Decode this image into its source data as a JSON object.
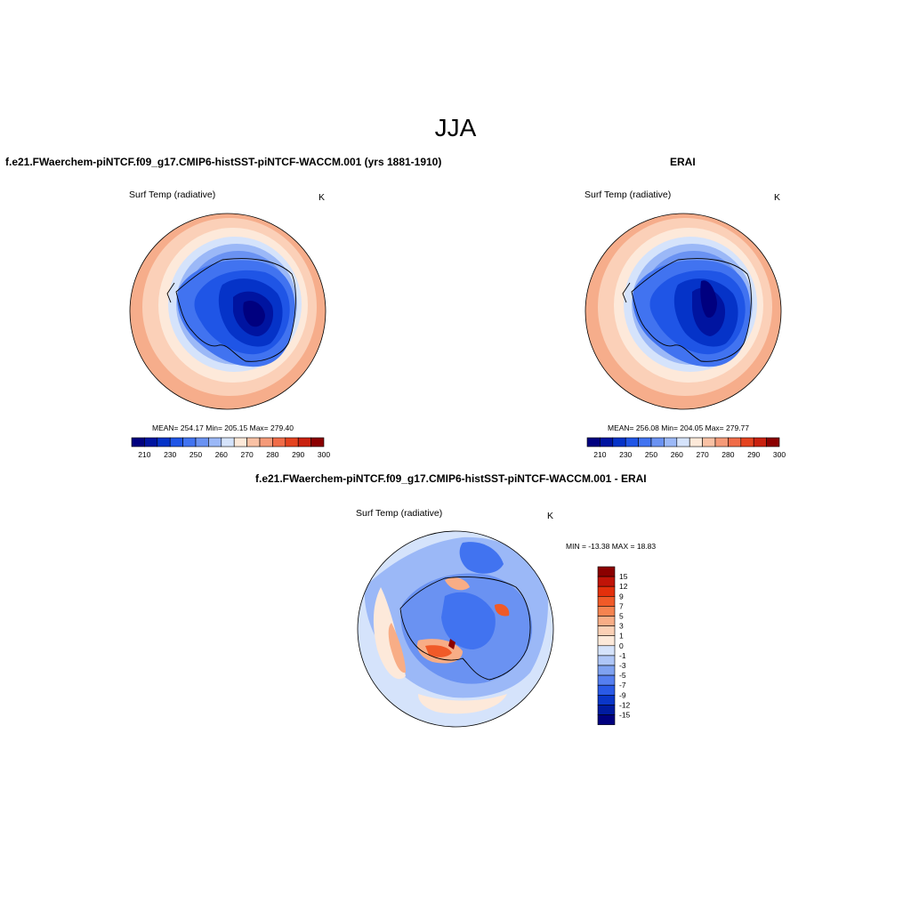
{
  "figure": {
    "title": "JJA",
    "left_panel": {
      "title": "f.e21.FWaerchem-piNTCF.f09_g17.CMIP6-histSST-piNTCF-WACCM.001 (yrs 1881-1910)",
      "variable": "Surf Temp (radiative)",
      "units": "K",
      "stats": "MEAN= 254.17  Min= 205.15  Max= 279.40"
    },
    "right_panel": {
      "title": "ERAI",
      "variable": "Surf Temp (radiative)",
      "units": "K",
      "stats": "MEAN= 256.08  Min= 204.05  Max= 279.77"
    },
    "diff_panel": {
      "title": "f.e21.FWaerchem-piNTCF.f09_g17.CMIP6-histSST-piNTCF-WACCM.001 - ERAI",
      "variable": "Surf Temp (radiative)",
      "units": "K",
      "stats": "MIN = -13.38 MAX =  18.83"
    }
  },
  "colorbars": {
    "abs_colors": [
      "#00007f",
      "#0014a0",
      "#0533c8",
      "#1f55e6",
      "#4173f0",
      "#6a92f2",
      "#9bb8f7",
      "#d5e3fb",
      "#fde9d9",
      "#f9c1a4",
      "#f59a78",
      "#f06c48",
      "#e4431f",
      "#c9210f",
      "#8b0000"
    ],
    "abs_labels": [
      "210",
      "230",
      "250",
      "260",
      "270",
      "280",
      "290",
      "300"
    ],
    "diff_colors": [
      "#8b0000",
      "#c01408",
      "#e3300c",
      "#f05a28",
      "#f58350",
      "#f8ad86",
      "#fbd0b5",
      "#fde9d9",
      "#d5e3fb",
      "#aec6f7",
      "#7fa2f1",
      "#557ff0",
      "#2a5ae6",
      "#0a36c8",
      "#001ba0",
      "#00007f"
    ],
    "diff_labels": [
      "15",
      "12",
      "9",
      "7",
      "5",
      "3",
      "1",
      "0",
      "-1",
      "-3",
      "-5",
      "-7",
      "-9",
      "-12",
      "-15"
    ]
  }
}
